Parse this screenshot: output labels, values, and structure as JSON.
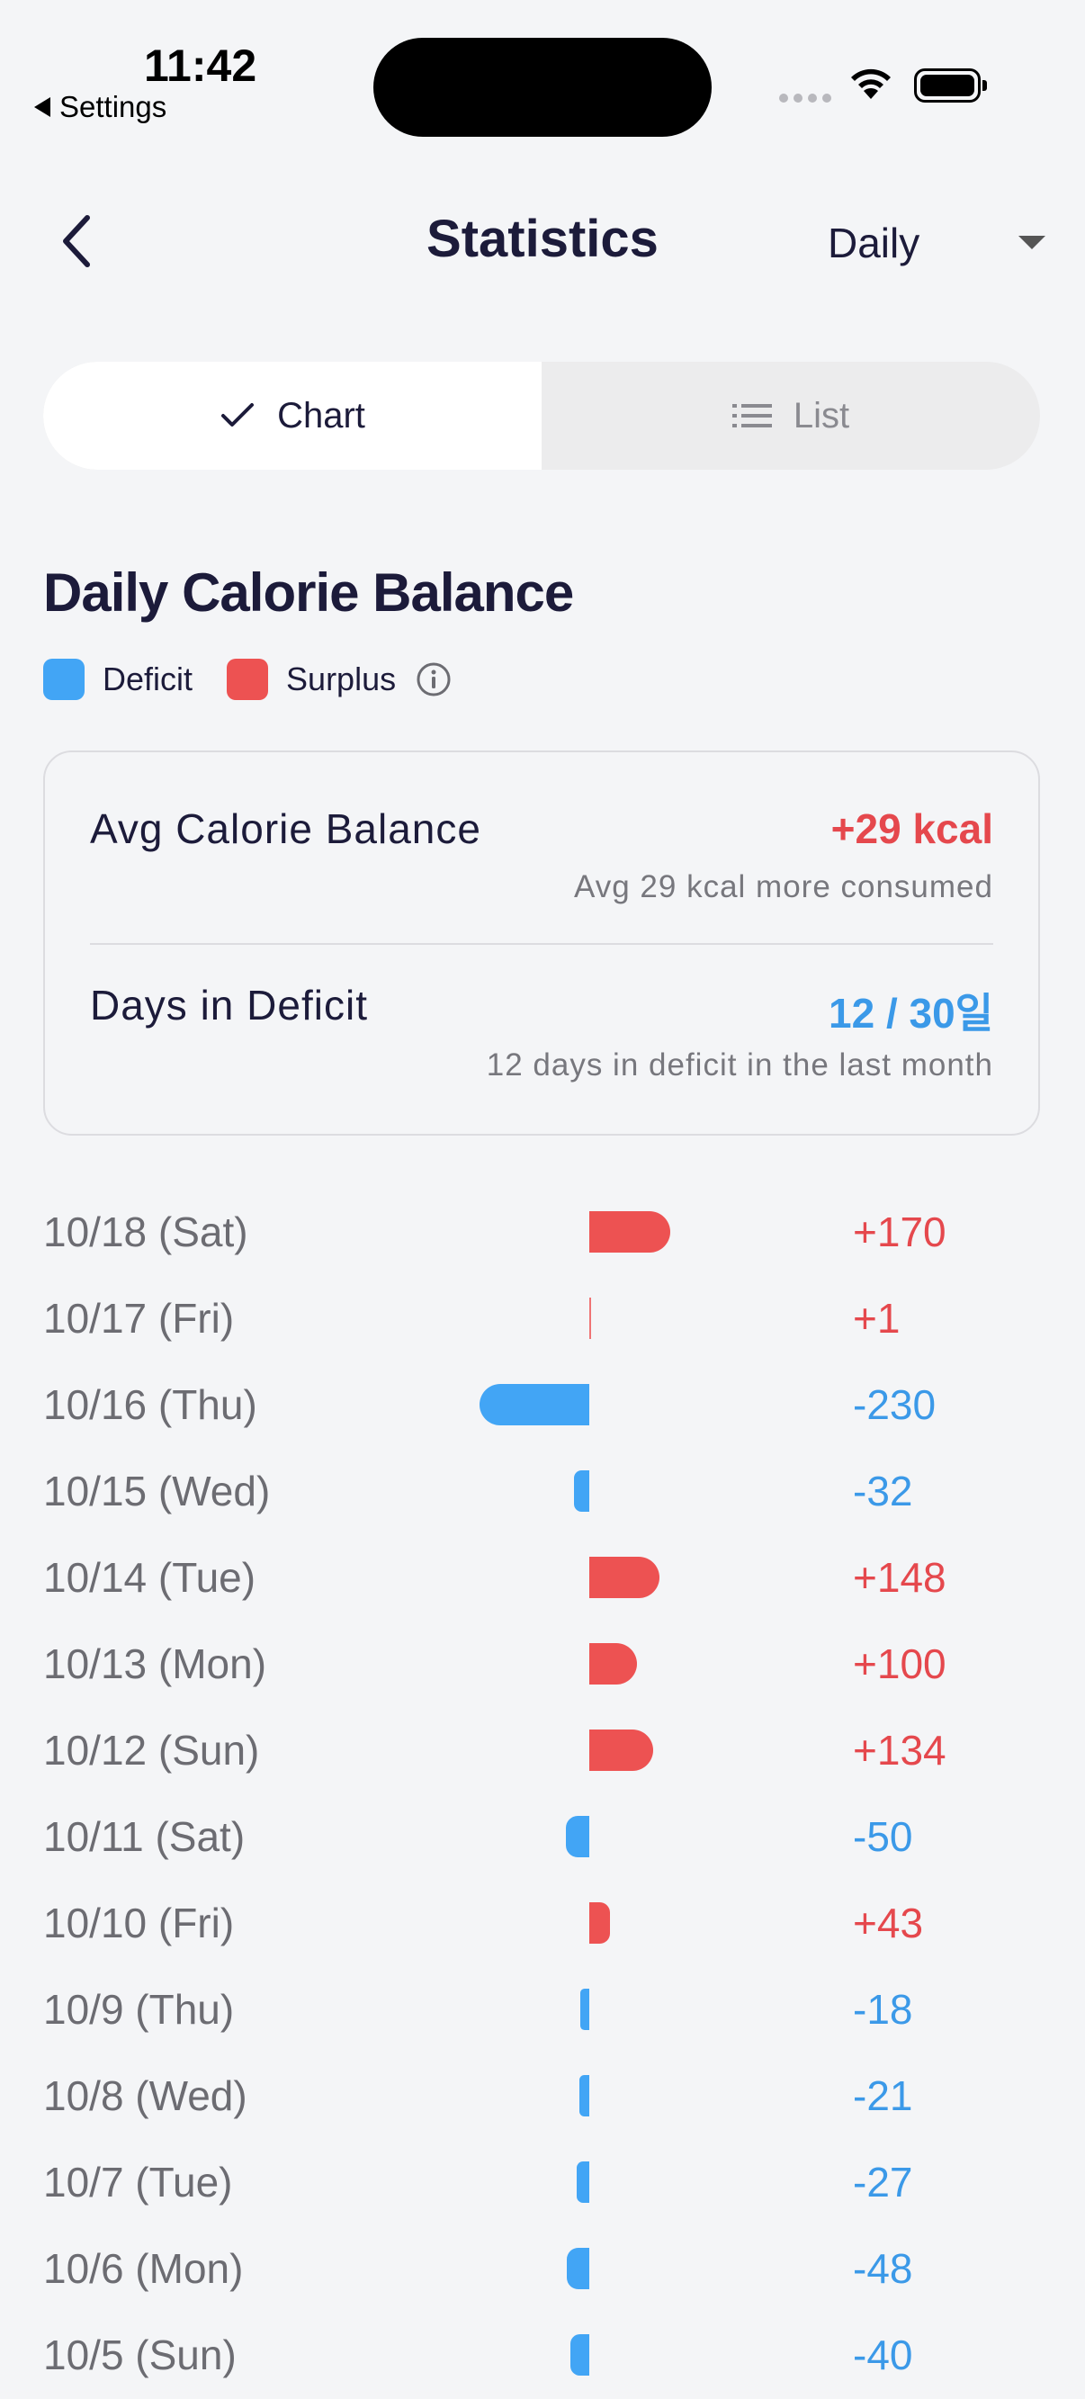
{
  "status_bar": {
    "time": "11:42",
    "back_app": "Settings"
  },
  "header": {
    "title": "Statistics",
    "period": "Daily"
  },
  "tabs": [
    {
      "label": "Chart",
      "icon": "check-icon",
      "active": true
    },
    {
      "label": "List",
      "icon": "list-icon",
      "active": false
    }
  ],
  "section": {
    "title": "Daily Calorie Balance",
    "legend": [
      {
        "label": "Deficit",
        "color": "#42a5f5"
      },
      {
        "label": "Surplus",
        "color": "#ed5252"
      }
    ]
  },
  "summary": {
    "avg": {
      "label": "Avg Calorie Balance",
      "value": "+29 kcal",
      "sub": "Avg 29 kcal more consumed"
    },
    "deficit_days": {
      "label": "Days in Deficit",
      "value": "12 / 30일",
      "sub": "12 days in deficit in the last month"
    }
  },
  "colors": {
    "deficit": "#42a5f5",
    "surplus": "#ed5252"
  },
  "days": [
    {
      "date": "10/18 (Sat)",
      "value": 170,
      "label": "+170"
    },
    {
      "date": "10/17 (Fri)",
      "value": 1,
      "label": "+1"
    },
    {
      "date": "10/16 (Thu)",
      "value": -230,
      "label": "-230"
    },
    {
      "date": "10/15 (Wed)",
      "value": -32,
      "label": "-32"
    },
    {
      "date": "10/14 (Tue)",
      "value": 148,
      "label": "+148"
    },
    {
      "date": "10/13 (Mon)",
      "value": 100,
      "label": "+100"
    },
    {
      "date": "10/12 (Sun)",
      "value": 134,
      "label": "+134"
    },
    {
      "date": "10/11 (Sat)",
      "value": -50,
      "label": "-50"
    },
    {
      "date": "10/10 (Fri)",
      "value": 43,
      "label": "+43"
    },
    {
      "date": "10/9 (Thu)",
      "value": -18,
      "label": "-18"
    },
    {
      "date": "10/8 (Wed)",
      "value": -21,
      "label": "-21"
    },
    {
      "date": "10/7 (Tue)",
      "value": -27,
      "label": "-27"
    },
    {
      "date": "10/6 (Mon)",
      "value": -48,
      "label": "-48"
    },
    {
      "date": "10/5 (Sun)",
      "value": -40,
      "label": "-40"
    }
  ]
}
